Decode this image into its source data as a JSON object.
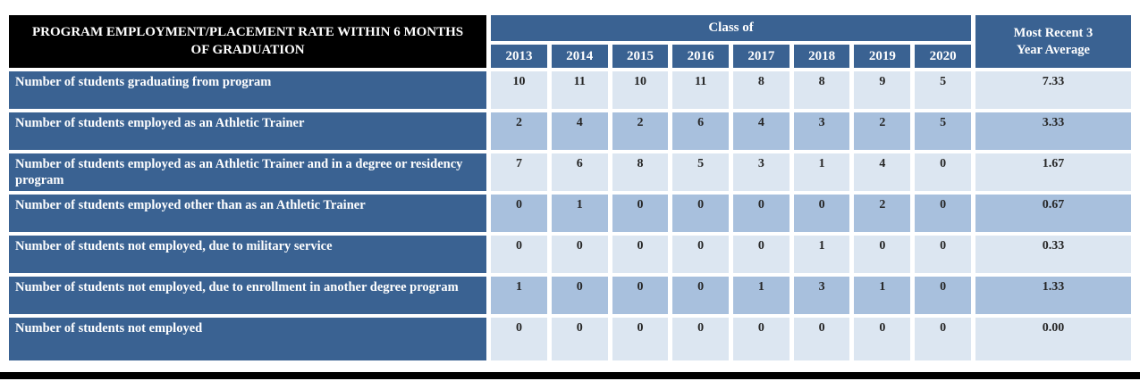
{
  "table": {
    "title_lines": [
      "PROGRAM EMPLOYMENT/PLACEMENT RATE WITHIN 6 MONTHS",
      "OF GRADUATION"
    ],
    "class_of_label": "Class of",
    "avg_label": "Most Recent 3 Year Average",
    "years": [
      "2013",
      "2014",
      "2015",
      "2016",
      "2017",
      "2018",
      "2019",
      "2020"
    ],
    "rows": [
      {
        "label": "Number of students graduating from program",
        "values": [
          "10",
          "11",
          "10",
          "11",
          "8",
          "8",
          "9",
          "5"
        ],
        "average": "7.33"
      },
      {
        "label": "Number of students employed as an Athletic Trainer",
        "values": [
          "2",
          "4",
          "2",
          "6",
          "4",
          "3",
          "2",
          "5"
        ],
        "average": "3.33"
      },
      {
        "label": "Number of students employed as an Athletic Trainer and in a degree or residency program",
        "values": [
          "7",
          "6",
          "8",
          "5",
          "3",
          "1",
          "4",
          "0"
        ],
        "average": "1.67"
      },
      {
        "label": "Number of students employed other than as an Athletic Trainer",
        "values": [
          "0",
          "1",
          "0",
          "0",
          "0",
          "0",
          "2",
          "0"
        ],
        "average": "0.67"
      },
      {
        "label": "Number of students not employed, due to military service",
        "values": [
          "0",
          "0",
          "0",
          "0",
          "0",
          "1",
          "0",
          "0"
        ],
        "average": "0.33"
      },
      {
        "label": "Number of students not employed, due to enrollment in another degree program",
        "values": [
          "1",
          "0",
          "0",
          "0",
          "1",
          "3",
          "1",
          "0"
        ],
        "average": "1.33"
      },
      {
        "label": "Number of students not employed",
        "values": [
          "0",
          "0",
          "0",
          "0",
          "0",
          "0",
          "0",
          "0"
        ],
        "average": "0.00"
      }
    ]
  },
  "colors": {
    "header_black": "#000000",
    "header_blue": "#3a6292",
    "row_light": "#dce6f1",
    "row_dark": "#a8c0dd",
    "label_text": "#ffffff",
    "value_text": "#262626",
    "bottom_bar": "#000000"
  }
}
